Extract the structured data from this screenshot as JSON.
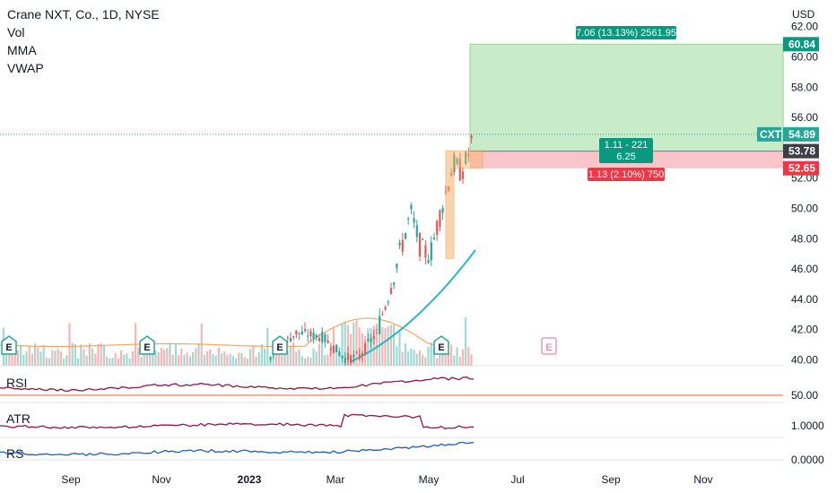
{
  "header": {
    "title": "Crane NXT, Co., 1D, NYSE",
    "indicators": [
      "Vol",
      "MMA",
      "VWAP"
    ]
  },
  "currency": "USD",
  "colors": {
    "up": "#26a69a",
    "down": "#ef5350",
    "profit_zone": "#c8ebc8",
    "profit_label": "#089981",
    "loss_zone": "#f9c5c8",
    "loss_label": "#f23645",
    "entry_box": "#f6b26b",
    "ma_teal": "#26b7c6",
    "ma_orange": "#f6a55b",
    "rsi": "#8e1544",
    "rsi_level": "#e65c3c",
    "atr": "#8e1544",
    "rs": "#1f5fb5",
    "earnings": "#26a69a",
    "earnings_future": "#e66b8a"
  },
  "chart_data": {
    "type": "candlestick",
    "symbol": "CXT",
    "interval": "1D",
    "exchange": "NYSE",
    "last_price": 54.89,
    "ylim": [
      39.6,
      62.0
    ],
    "y_ticks": [
      "40.00",
      "42.00",
      "44.00",
      "46.00",
      "48.00",
      "50.00",
      "52.00",
      "54.00",
      "56.00",
      "58.00",
      "60.00",
      "62.00"
    ],
    "x_ticks": [
      "Sep",
      "Nov",
      "2023",
      "Mar",
      "May",
      "Jul",
      "Sep",
      "Nov"
    ],
    "position": {
      "target": 60.84,
      "entry": 53.78,
      "stop": 52.65,
      "target_label": "7.06 (13.13%) 2561.95",
      "stop_label": "1.13 (2.10%) 750",
      "rr_label_line1": "1.11 - 221",
      "rr_label_line2": "6.25"
    },
    "price_tags": {
      "ticker": "CXT",
      "last": "54.89",
      "entry": "53.78",
      "target": "60.84",
      "stop": "52.65"
    },
    "earnings_markers": [
      "E",
      "E",
      "E",
      "E",
      "E"
    ],
    "panes": [
      {
        "name": "RSI",
        "level": "50.00"
      },
      {
        "name": "ATR",
        "level": "1.0000"
      },
      {
        "name": "RS",
        "level": "0.0000"
      }
    ]
  }
}
